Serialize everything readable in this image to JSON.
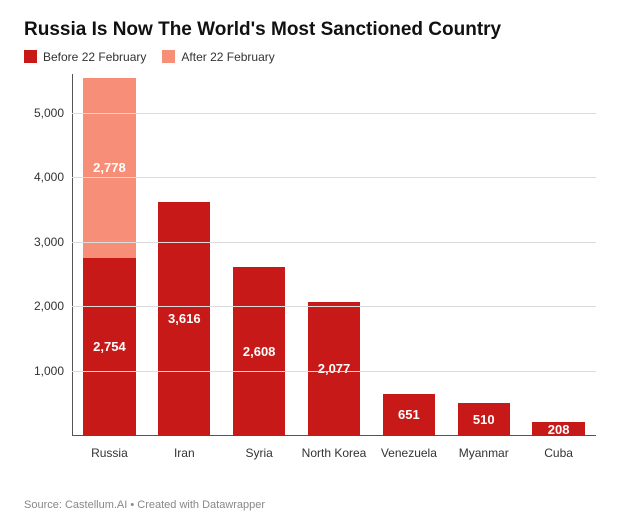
{
  "title": "Russia Is Now The World's Most Sanctioned Country",
  "title_fontsize": 19,
  "legend": [
    {
      "label": "Before 22 February",
      "color": "#c81919"
    },
    {
      "label": "After 22 February",
      "color": "#f78e77"
    }
  ],
  "chart": {
    "type": "stacked-bar",
    "background_color": "#ffffff",
    "grid_color": "#dcdcdc",
    "axis_color": "#555555",
    "label_color": "#333333",
    "bar_label_color": "#ffffff",
    "bar_label_fontsize": 13,
    "bar_width": 0.7,
    "ylim": [
      0,
      5600
    ],
    "yticks": [
      1000,
      2000,
      3000,
      4000,
      5000
    ],
    "ytick_labels": [
      "1,000",
      "2,000",
      "3,000",
      "4,000",
      "5,000"
    ],
    "categories": [
      "Russia",
      "Iran",
      "Syria",
      "North Korea",
      "Venezuela",
      "Myanmar",
      "Cuba"
    ],
    "series": [
      {
        "name": "Before 22 February",
        "color": "#c81919",
        "values": [
          2754,
          3616,
          2608,
          2077,
          651,
          510,
          208
        ],
        "value_labels": [
          "2,754",
          "3,616",
          "2,608",
          "2,077",
          "651",
          "510",
          "208"
        ]
      },
      {
        "name": "After 22 February",
        "color": "#f78e77",
        "values": [
          2778,
          0,
          0,
          0,
          0,
          0,
          0
        ],
        "value_labels": [
          "2,778",
          "",
          "",
          "",
          "",
          "",
          ""
        ]
      }
    ]
  },
  "source": "Source: Castellum.AI • Created with Datawrapper",
  "source_color": "#888888"
}
